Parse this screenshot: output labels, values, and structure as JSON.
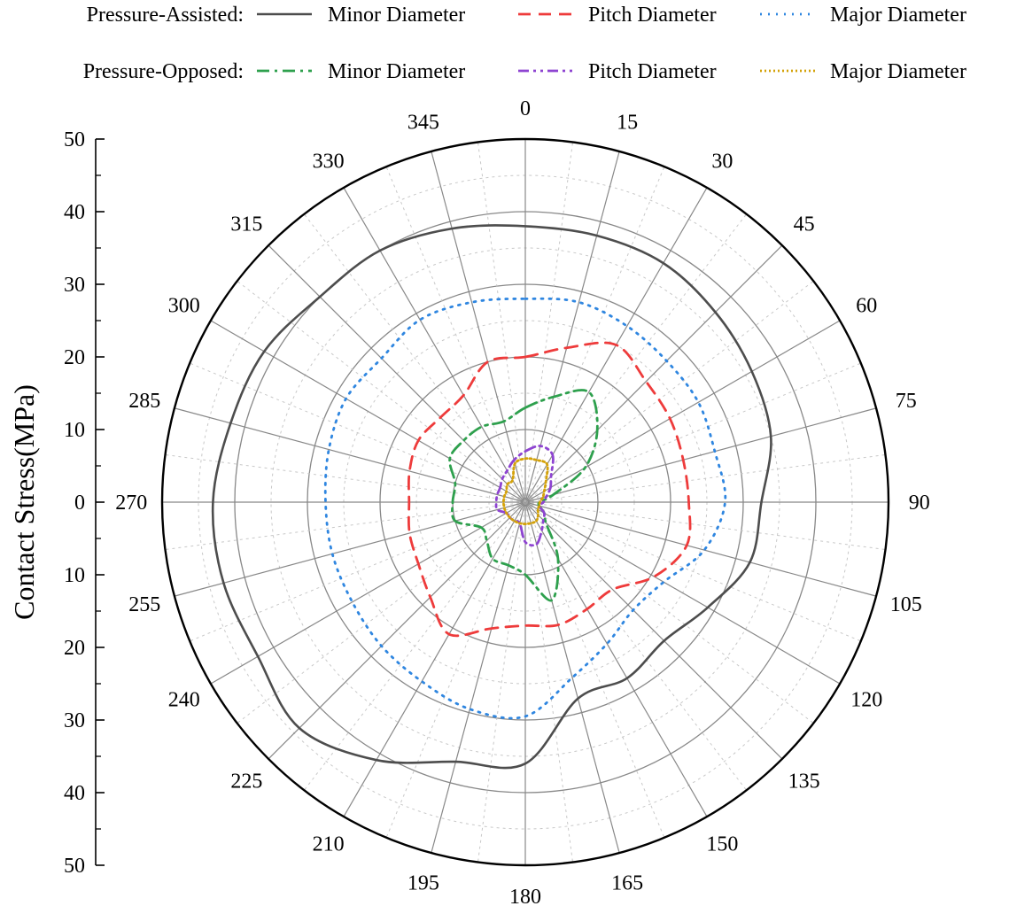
{
  "chart_data": {
    "type": "polar-line",
    "title": "",
    "ylabel": "Contact Stress(MPa)",
    "r_range": [
      0,
      50
    ],
    "r_ticks": [
      "0",
      "10",
      "20",
      "30",
      "40",
      "50"
    ],
    "axis_labels": [
      "50",
      "40",
      "30",
      "20",
      "10",
      "0",
      "10",
      "20",
      "30",
      "40",
      "50"
    ],
    "angle_ticks": [
      "0",
      "15",
      "30",
      "45",
      "60",
      "75",
      "90",
      "105",
      "120",
      "135",
      "150",
      "165",
      "180",
      "195",
      "210",
      "225",
      "240",
      "255",
      "270",
      "285",
      "300",
      "315",
      "330",
      "345"
    ],
    "angle_direction": "clockwise",
    "zero_location": "top",
    "grid": true,
    "legend_position": "top",
    "legend_groups": [
      {
        "label": "Pressure-Assisted:",
        "series_names": [
          "Minor Diameter",
          "Pitch Diameter",
          "Major Diameter"
        ]
      },
      {
        "label": "Pressure-Opposed:",
        "series_names": [
          "Minor Diameter",
          "Pitch Diameter",
          "Major Diameter"
        ]
      }
    ],
    "angles": [
      0,
      15,
      30,
      45,
      60,
      75,
      90,
      105,
      120,
      135,
      150,
      165,
      180,
      195,
      210,
      225,
      240,
      255,
      270,
      285,
      300,
      315,
      330,
      345
    ],
    "series": [
      {
        "name": "Minor Diameter",
        "group": "Pressure-Assisted",
        "color": "#4d4d4d",
        "dash": "solid",
        "values": [
          38,
          38,
          38,
          37,
          36,
          35,
          32.5,
          32,
          29,
          27,
          28,
          28,
          36,
          37,
          41,
          44,
          42.5,
          43,
          43,
          42,
          41.5,
          40,
          40,
          39
        ]
      },
      {
        "name": "Pitch Diameter",
        "group": "Pressure-Assisted",
        "color": "#ee3b3b",
        "dash": "dash",
        "values": [
          20,
          22,
          25,
          23.5,
          23,
          22.5,
          22.5,
          23,
          20.5,
          17,
          17,
          17.5,
          17,
          18,
          21,
          18.5,
          17,
          16.5,
          16,
          16.5,
          17,
          16.5,
          17,
          20
        ]
      },
      {
        "name": "Major Diameter",
        "group": "Pressure-Assisted",
        "color": "#2f86e0",
        "dash": "dot",
        "values": [
          28,
          28.5,
          28,
          27.5,
          27.5,
          27,
          27.5,
          25.5,
          22,
          21,
          22.5,
          25,
          29.5,
          29.5,
          28.5,
          28,
          27.5,
          27.5,
          27.5,
          28,
          28.5,
          28,
          29,
          28.5
        ]
      },
      {
        "name": "Minor Diameter",
        "group": "Pressure-Opposed",
        "color": "#2ea04d",
        "dash": "dashdot",
        "values": [
          13,
          15,
          17.5,
          14,
          9.5,
          4,
          2,
          2,
          3,
          4,
          9,
          14,
          10,
          9,
          9,
          7.5,
          7,
          10,
          10,
          10,
          12,
          12,
          12,
          11.5
        ]
      },
      {
        "name": "Pitch Diameter",
        "group": "Pressure-Opposed",
        "color": "#8e44d1",
        "dash": "dashdotdot",
        "values": [
          7,
          8,
          7.5,
          5,
          4,
          3,
          2.5,
          2,
          3,
          3.5,
          4.5,
          6,
          5.5,
          3,
          3,
          3,
          3,
          4,
          4,
          4,
          4,
          4.5,
          5,
          6
        ]
      },
      {
        "name": "Major Diameter",
        "group": "Pressure-Opposed",
        "color": "#d4a20a",
        "dash": "shortdot",
        "values": [
          6,
          6,
          6,
          4,
          3,
          2.5,
          2,
          2,
          2,
          2.5,
          3,
          3,
          3,
          3,
          3,
          3,
          3,
          3,
          3,
          3,
          3,
          3.5,
          3.5,
          5.5
        ]
      }
    ]
  }
}
